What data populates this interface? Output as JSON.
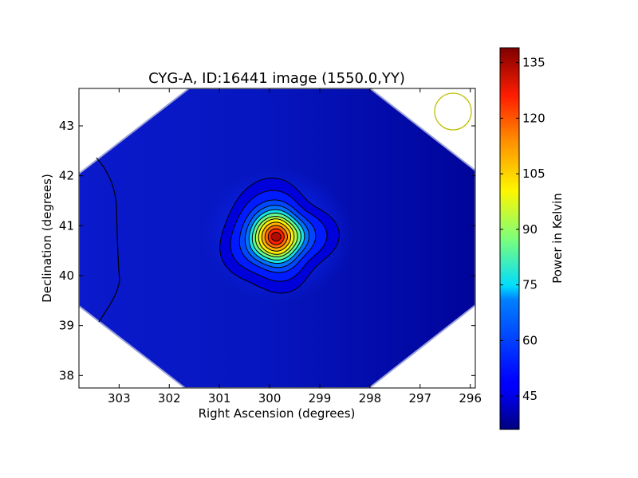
{
  "chart_data": {
    "type": "heatmap",
    "title": "CYG-A, ID:16441 image (1550.0,YY)",
    "xlabel": "Right Ascension (degrees)",
    "ylabel": "Declination (degrees)",
    "xlim": [
      303.8,
      295.9
    ],
    "ylim": [
      37.75,
      43.75
    ],
    "x_ticks": [
      303,
      302,
      301,
      300,
      299,
      298,
      297,
      296
    ],
    "y_ticks": [
      38,
      39,
      40,
      41,
      42,
      43
    ],
    "x_tick_labels": [
      "303",
      "302",
      "301",
      "300",
      "299",
      "298",
      "297",
      "296"
    ],
    "y_tick_labels": [
      "38",
      "39",
      "40",
      "41",
      "42",
      "43"
    ],
    "peak": {
      "ra": 299.87,
      "dec": 40.78,
      "value": 138
    },
    "background_level": 40,
    "colormap": "jet",
    "contours": true,
    "beam_marker": {
      "ra": 296.35,
      "dec": 43.28,
      "color": "#bfbf00"
    },
    "colorbar": {
      "label": "Power in Kelvin",
      "range": [
        36,
        139
      ],
      "ticks": [
        45,
        60,
        75,
        90,
        105,
        120,
        135
      ],
      "tick_labels": [
        "45",
        "60",
        "75",
        "90",
        "105",
        "120",
        "135"
      ]
    },
    "grid": false
  }
}
